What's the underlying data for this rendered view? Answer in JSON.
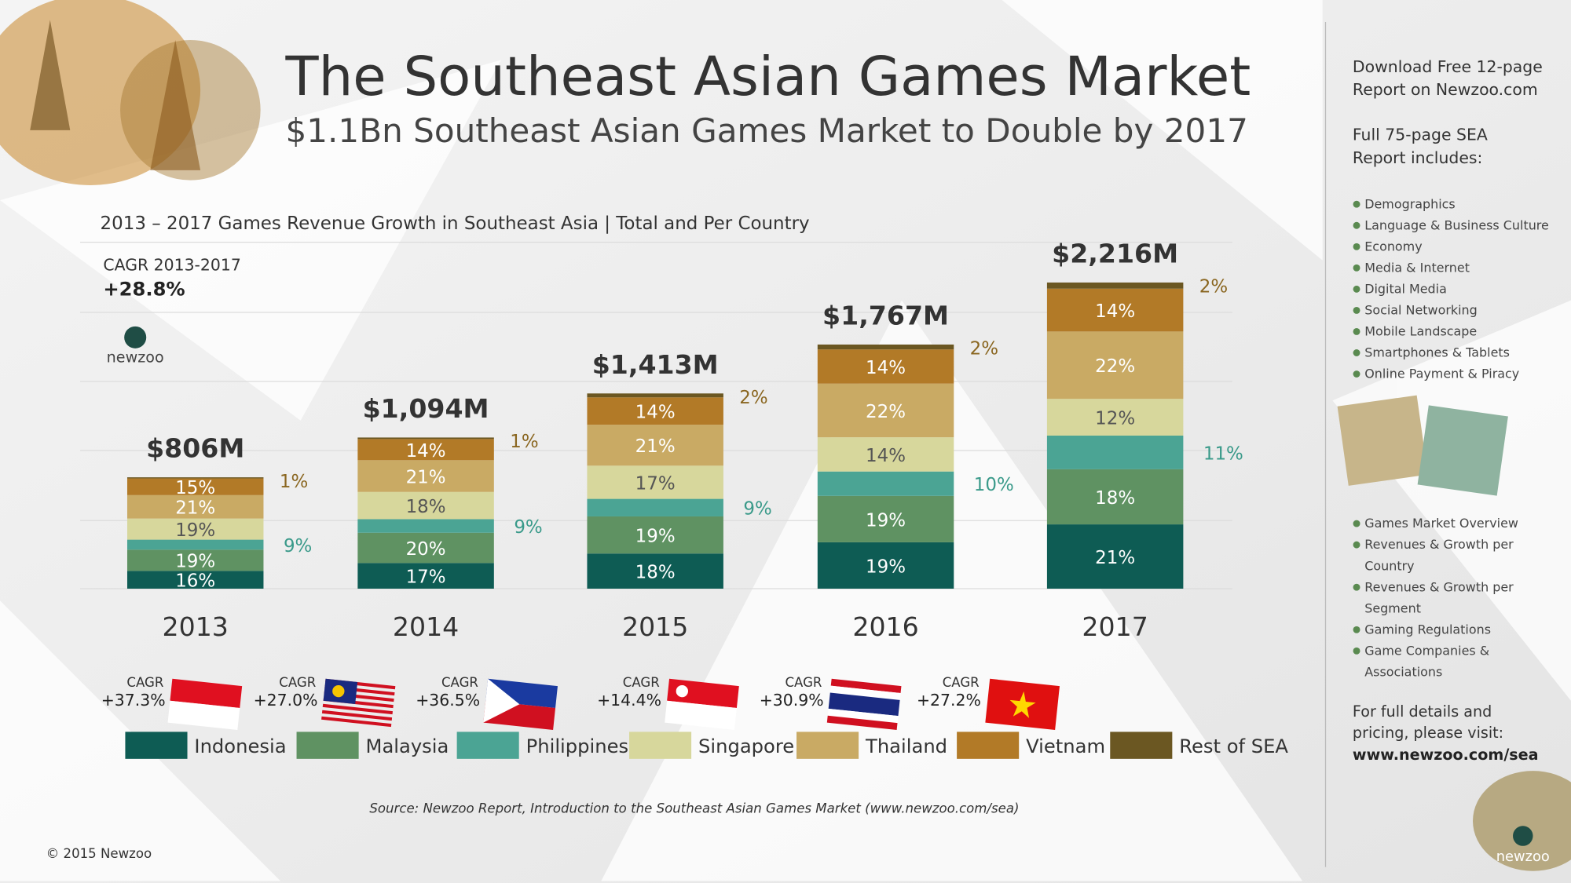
{
  "chart_data": {
    "type": "bar",
    "title": "The Southeast Asian Games Market",
    "subtitle": "$1.1Bn Southeast Asian Games Market to Double by 2017",
    "chart_title": "2013 – 2017 Games Revenue Growth in Southeast Asia | Total and Per Country",
    "cagr_heading": "CAGR 2013-2017",
    "cagr_total": 28.8,
    "cagr_total_label": "+28.8%",
    "cagr_word": "CAGR",
    "categories": [
      "2013",
      "2014",
      "2015",
      "2016",
      "2017"
    ],
    "totals": [
      806,
      1094,
      1413,
      1767,
      2216
    ],
    "total_labels": [
      "$806M",
      "$1,094M",
      "$1,413M",
      "$1,767M",
      "$2,216M"
    ],
    "series": [
      {
        "name": "Indonesia",
        "color": "#0e5c54",
        "values": [
          16,
          17,
          18,
          19,
          21
        ],
        "value_labels": [
          "16%",
          "17%",
          "18%",
          "19%",
          "21%"
        ],
        "cagr": 37.3,
        "cagr_label": "+37.3%"
      },
      {
        "name": "Malaysia",
        "color": "#5f9262",
        "values": [
          19,
          20,
          19,
          19,
          18
        ],
        "value_labels": [
          "19%",
          "20%",
          "19%",
          "19%",
          "18%"
        ],
        "cagr": 27.0,
        "cagr_label": "+27.0%"
      },
      {
        "name": "Philippines",
        "color": "#4ba494",
        "values": [
          9,
          9,
          9,
          10,
          11
        ],
        "value_labels": [
          "9%",
          "9%",
          "9%",
          "10%",
          "11%"
        ],
        "cagr": 36.5,
        "cagr_label": "+36.5%"
      },
      {
        "name": "Singapore",
        "color": "#d7d79c",
        "values": [
          19,
          18,
          17,
          14,
          12
        ],
        "value_labels": [
          "19%",
          "18%",
          "17%",
          "14%",
          "12%"
        ],
        "cagr": 14.4,
        "cagr_label": "+14.4%"
      },
      {
        "name": "Thailand",
        "color": "#c9aa64",
        "values": [
          21,
          21,
          21,
          22,
          22
        ],
        "value_labels": [
          "21%",
          "21%",
          "21%",
          "22%",
          "22%"
        ],
        "cagr": 30.9,
        "cagr_label": "+30.9%"
      },
      {
        "name": "Vietnam",
        "color": "#b27a27",
        "values": [
          15,
          14,
          14,
          14,
          14
        ],
        "value_labels": [
          "15%",
          "14%",
          "14%",
          "14%",
          "14%"
        ],
        "cagr": 27.2,
        "cagr_label": "+27.2%"
      },
      {
        "name": "Rest of SEA",
        "color": "#6b5722",
        "values": [
          1,
          1,
          2,
          2,
          2
        ],
        "value_labels": [
          "1%",
          "1%",
          "2%",
          "2%",
          "2%"
        ]
      }
    ],
    "source": "Source: Newzoo Report, Introduction to the Southeast Asian Games Market (www.newzoo.com/sea)"
  },
  "logo": "newzoo",
  "copyright": "© 2015 Newzoo",
  "sidebar": {
    "download": [
      "Download Free 12-page",
      "Report on Newzoo.com"
    ],
    "includes": [
      "Full 75-page SEA",
      "Report includes:"
    ],
    "list1": [
      [
        "Demographics"
      ],
      [
        "Language & Business Culture"
      ],
      [
        "Economy"
      ],
      [
        "Media & Internet"
      ],
      [
        "Digital Media"
      ],
      [
        "Social Networking"
      ],
      [
        "Mobile Landscape"
      ],
      [
        "Smartphones & Tablets"
      ],
      [
        "Online Payment & Piracy"
      ]
    ],
    "list2": [
      [
        "Games Market Overview"
      ],
      [
        "Revenues & Growth per",
        "Country"
      ],
      [
        "Revenues & Growth per",
        "Segment"
      ],
      [
        "Gaming Regulations"
      ],
      [
        "Game Companies &",
        "Associations"
      ]
    ],
    "details": [
      "For full details and",
      "pricing, please visit:"
    ],
    "url": "www.newzoo.com/sea"
  }
}
